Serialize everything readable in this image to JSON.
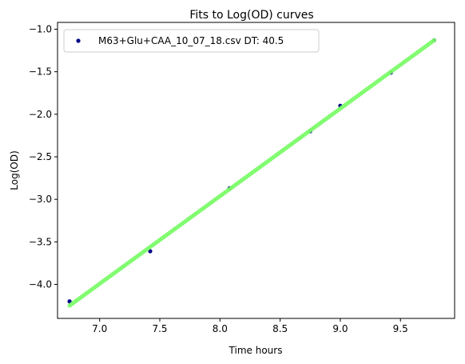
{
  "chart_data": {
    "type": "scatter",
    "title": "Fits to Log(OD) curves",
    "xlabel": "Time hours",
    "ylabel": "Log(OD)",
    "xlim": [
      6.65,
      9.95
    ],
    "ylim": [
      -4.4,
      -0.92
    ],
    "xticks": [
      7.0,
      7.5,
      8.0,
      8.5,
      9.0,
      9.5
    ],
    "xtick_labels": [
      "7.0",
      "7.5",
      "8.0",
      "8.5",
      "9.0",
      "9.5"
    ],
    "yticks": [
      -4.0,
      -3.5,
      -3.0,
      -2.5,
      -2.0,
      -1.5,
      -1.0
    ],
    "ytick_labels": [
      "−4.0",
      "−3.5",
      "−3.0",
      "−2.5",
      "−2.0",
      "−1.5",
      "−1.0"
    ],
    "grid": false,
    "legend_position": "top-left",
    "series": [
      {
        "name": "M63+Glu+CAA_10_07_18.csv DT: 40.5",
        "kind": "points",
        "color": "#00008b",
        "x": [
          6.75,
          7.42,
          8.08,
          8.75,
          9.0,
          9.42,
          9.78
        ],
        "y": [
          -4.2,
          -3.61,
          -2.87,
          -2.2,
          -1.9,
          -1.51,
          -1.13
        ]
      },
      {
        "kind": "fit-line",
        "color": "#7cfc6a",
        "x": [
          6.75,
          9.78
        ],
        "y": [
          -4.25,
          -1.13
        ]
      }
    ]
  }
}
